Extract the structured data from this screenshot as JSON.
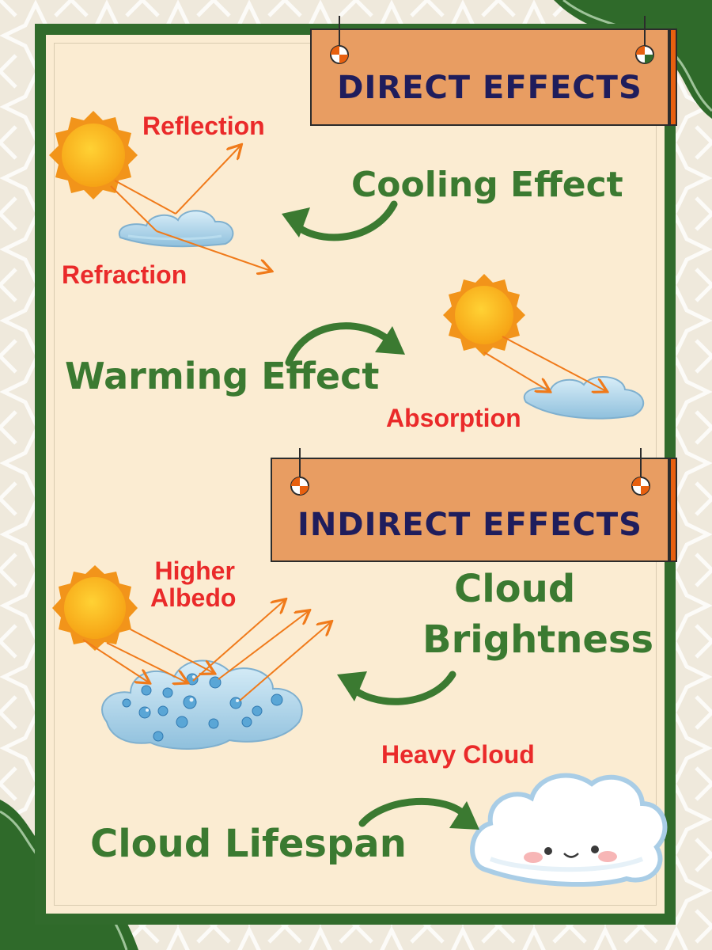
{
  "direct": {
    "heading": "DIRECT EFFECTS",
    "reflection": "Reflection",
    "refraction": "Refraction",
    "cooling": "Cooling Effect",
    "warming": "Warming Effect",
    "absorption": "Absorption"
  },
  "indirect": {
    "heading": "INDIRECT EFFECTS",
    "albedo_line1": "Higher",
    "albedo_line2": "Albedo",
    "brightness_line1": "Cloud",
    "brightness_line2": "Brightness",
    "heavy_cloud": "Heavy Cloud",
    "lifespan": "Cloud Lifespan"
  },
  "colors": {
    "frame_green": "#316b2c",
    "paper": "#fbecd2",
    "banner_orange": "#e89d62",
    "banner_text": "#1f1d5c",
    "label_red": "#ea2a2a",
    "label_green": "#3b7a31",
    "ray_orange": "#f07a1a"
  }
}
